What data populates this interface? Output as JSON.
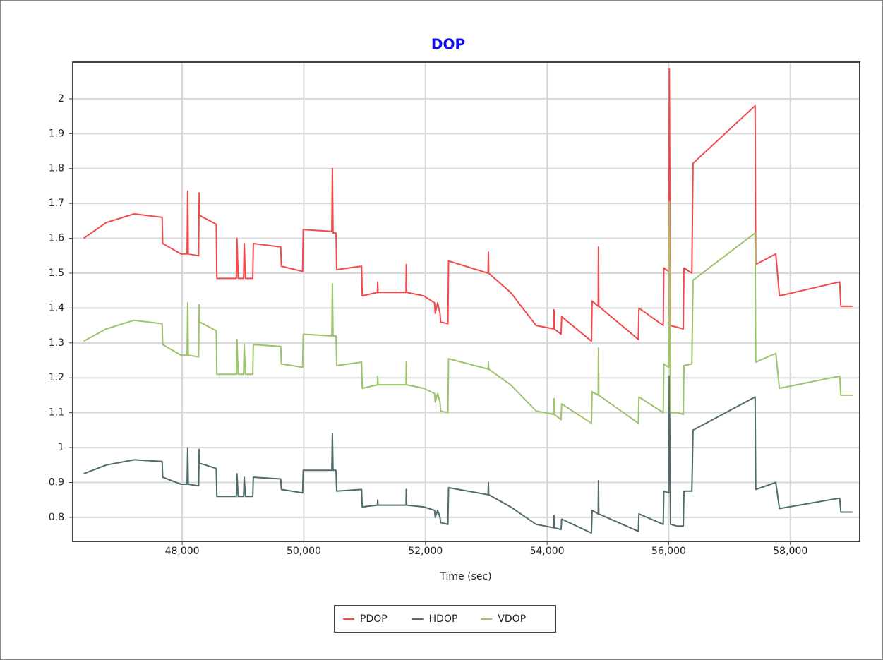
{
  "chart_data": {
    "type": "line",
    "title": "DOP",
    "x_label": "Time (sec)",
    "xlim": [
      46200,
      59140
    ],
    "ylim": [
      0.731,
      2.105
    ],
    "xticks": [
      {
        "value": 48000,
        "label": "48,000"
      },
      {
        "value": 50000,
        "label": "50,000"
      },
      {
        "value": 52000,
        "label": "52,000"
      },
      {
        "value": 54000,
        "label": "54,000"
      },
      {
        "value": 56000,
        "label": "56,000"
      },
      {
        "value": 58000,
        "label": "58,000"
      }
    ],
    "yticks": [
      0.8,
      0.9,
      1,
      1.1,
      1.2,
      1.3,
      1.4,
      1.5,
      1.6,
      1.7,
      1.8,
      1.9,
      2
    ],
    "grid": true,
    "legend": "bottom",
    "x": [
      46380,
      46750,
      47210,
      47670,
      47680,
      47980,
      48080,
      48090,
      48100,
      48270,
      48280,
      48290,
      48560,
      48570,
      48890,
      48900,
      48920,
      49010,
      49020,
      49040,
      49160,
      49170,
      49620,
      49630,
      49980,
      49990,
      50460,
      50470,
      50480,
      50530,
      50540,
      50950,
      50960,
      51210,
      51215,
      51220,
      51680,
      51685,
      51690,
      51970,
      52150,
      52160,
      52200,
      52240,
      52250,
      52370,
      52380,
      53030,
      53035,
      53040,
      53400,
      53820,
      54110,
      54115,
      54120,
      54230,
      54240,
      54730,
      54740,
      54840,
      54845,
      54850,
      55500,
      55510,
      55910,
      55920,
      56000,
      56010,
      56030,
      56140,
      56240,
      56250,
      56380,
      56400,
      57420,
      57430,
      57760,
      57820,
      58810,
      58830,
      59020
    ],
    "series": [
      {
        "name": "PDOP",
        "color": "#f2494b",
        "values": [
          1.6,
          1.645,
          1.67,
          1.66,
          1.585,
          1.555,
          1.555,
          1.735,
          1.555,
          1.55,
          1.73,
          1.665,
          1.64,
          1.485,
          1.485,
          1.6,
          1.485,
          1.485,
          1.585,
          1.485,
          1.485,
          1.585,
          1.575,
          1.52,
          1.505,
          1.625,
          1.62,
          1.8,
          1.615,
          1.615,
          1.51,
          1.52,
          1.435,
          1.445,
          1.475,
          1.445,
          1.445,
          1.525,
          1.445,
          1.435,
          1.415,
          1.385,
          1.415,
          1.385,
          1.36,
          1.355,
          1.535,
          1.5,
          1.56,
          1.5,
          1.445,
          1.35,
          1.34,
          1.395,
          1.34,
          1.325,
          1.375,
          1.305,
          1.42,
          1.405,
          1.575,
          1.405,
          1.31,
          1.4,
          1.35,
          1.515,
          1.505,
          2.085,
          1.35,
          1.345,
          1.34,
          1.515,
          1.5,
          1.815,
          1.98,
          1.525,
          1.555,
          1.435,
          1.475,
          1.405,
          1.405
        ]
      },
      {
        "name": "HDOP",
        "color": "#4f6b6b",
        "values": [
          0.925,
          0.95,
          0.965,
          0.96,
          0.915,
          0.895,
          0.895,
          1.0,
          0.895,
          0.89,
          0.995,
          0.955,
          0.94,
          0.86,
          0.86,
          0.925,
          0.86,
          0.86,
          0.915,
          0.86,
          0.86,
          0.915,
          0.91,
          0.88,
          0.87,
          0.935,
          0.935,
          1.04,
          0.935,
          0.935,
          0.875,
          0.88,
          0.83,
          0.835,
          0.85,
          0.835,
          0.835,
          0.88,
          0.835,
          0.83,
          0.82,
          0.8,
          0.82,
          0.8,
          0.785,
          0.78,
          0.885,
          0.865,
          0.9,
          0.865,
          0.83,
          0.78,
          0.77,
          0.805,
          0.77,
          0.765,
          0.795,
          0.755,
          0.82,
          0.81,
          0.905,
          0.81,
          0.76,
          0.81,
          0.78,
          0.875,
          0.87,
          1.205,
          0.78,
          0.775,
          0.775,
          0.875,
          0.875,
          1.05,
          1.145,
          0.88,
          0.9,
          0.825,
          0.855,
          0.815,
          0.815
        ]
      },
      {
        "name": "VDOP",
        "color": "#9dc36b",
        "values": [
          1.305,
          1.34,
          1.365,
          1.355,
          1.295,
          1.265,
          1.265,
          1.415,
          1.265,
          1.26,
          1.41,
          1.36,
          1.335,
          1.21,
          1.21,
          1.31,
          1.21,
          1.21,
          1.295,
          1.21,
          1.21,
          1.295,
          1.29,
          1.24,
          1.23,
          1.325,
          1.32,
          1.47,
          1.32,
          1.32,
          1.235,
          1.245,
          1.17,
          1.18,
          1.205,
          1.18,
          1.18,
          1.245,
          1.18,
          1.17,
          1.155,
          1.13,
          1.155,
          1.13,
          1.105,
          1.1,
          1.255,
          1.225,
          1.245,
          1.225,
          1.18,
          1.105,
          1.095,
          1.14,
          1.095,
          1.08,
          1.125,
          1.07,
          1.16,
          1.15,
          1.285,
          1.15,
          1.07,
          1.145,
          1.1,
          1.24,
          1.23,
          1.705,
          1.1,
          1.1,
          1.095,
          1.235,
          1.24,
          1.48,
          1.615,
          1.245,
          1.27,
          1.17,
          1.205,
          1.15,
          1.15
        ]
      }
    ]
  }
}
